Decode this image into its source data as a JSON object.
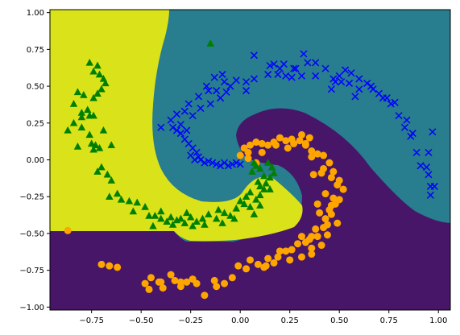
{
  "chart_data": {
    "type": "scatter",
    "title": "",
    "xlabel": "",
    "ylabel": "",
    "xlim": [
      -0.96,
      1.06
    ],
    "ylim": [
      -1.02,
      1.02
    ],
    "grid": false,
    "legend": "none",
    "x_ticks": [
      -0.75,
      -0.5,
      -0.25,
      0.0,
      0.25,
      0.5,
      0.75,
      1.0
    ],
    "x_tick_labels": [
      "−0.75",
      "−0.50",
      "−0.25",
      "0.00",
      "0.25",
      "0.50",
      "0.75",
      "1.00"
    ],
    "y_ticks": [
      -1.0,
      -0.75,
      -0.5,
      -0.25,
      0.0,
      0.25,
      0.5,
      0.75,
      1.0
    ],
    "y_tick_labels": [
      "−1.00",
      "−0.75",
      "−0.50",
      "−0.25",
      "0.00",
      "0.25",
      "0.50",
      "0.75",
      "1.00"
    ],
    "regions": [
      {
        "class": "teal",
        "color": "#287d8e"
      },
      {
        "class": "purple",
        "color": "#471669"
      },
      {
        "class": "yellow",
        "color": "#dae319"
      }
    ],
    "series": [
      {
        "marker": "x",
        "color": "#0000ff",
        "points": [
          [
            0.0,
            -0.03
          ],
          [
            -0.02,
            -0.02
          ],
          [
            -0.04,
            -0.03
          ],
          [
            -0.06,
            -0.04
          ],
          [
            -0.08,
            -0.02
          ],
          [
            -0.1,
            -0.04
          ],
          [
            -0.12,
            -0.03
          ],
          [
            -0.14,
            -0.02
          ],
          [
            -0.16,
            -0.01
          ],
          [
            -0.18,
            -0.02
          ],
          [
            -0.2,
            0.0
          ],
          [
            -0.21,
            0.02
          ],
          [
            -0.23,
            0.0
          ],
          [
            -0.25,
            0.03
          ],
          [
            -0.22,
            0.05
          ],
          [
            -0.24,
            0.08
          ],
          [
            -0.26,
            0.11
          ],
          [
            -0.28,
            0.14
          ],
          [
            -0.3,
            0.18
          ],
          [
            -0.32,
            0.2
          ],
          [
            -0.27,
            0.2
          ],
          [
            -0.3,
            0.24
          ],
          [
            -0.34,
            0.22
          ],
          [
            -0.4,
            0.22
          ],
          [
            -0.35,
            0.27
          ],
          [
            -0.32,
            0.31
          ],
          [
            -0.28,
            0.33
          ],
          [
            -0.24,
            0.3
          ],
          [
            -0.2,
            0.35
          ],
          [
            -0.15,
            0.38
          ],
          [
            -0.1,
            0.42
          ],
          [
            -0.07,
            0.46
          ],
          [
            -0.05,
            0.5
          ],
          [
            -0.02,
            0.54
          ],
          [
            -0.08,
            0.53
          ],
          [
            -0.12,
            0.47
          ],
          [
            0.07,
            0.55
          ],
          [
            0.07,
            0.71
          ],
          [
            0.15,
            0.64
          ],
          [
            0.19,
            0.58
          ],
          [
            0.2,
            0.62
          ],
          [
            0.22,
            0.65
          ],
          [
            0.26,
            0.56
          ],
          [
            0.28,
            0.62
          ],
          [
            0.32,
            0.72
          ],
          [
            0.34,
            0.66
          ],
          [
            0.38,
            0.57
          ],
          [
            0.43,
            0.62
          ],
          [
            0.47,
            0.55
          ],
          [
            0.5,
            0.57
          ],
          [
            0.53,
            0.61
          ],
          [
            0.56,
            0.59
          ],
          [
            0.6,
            0.55
          ],
          [
            0.64,
            0.52
          ],
          [
            0.67,
            0.48
          ],
          [
            0.7,
            0.45
          ],
          [
            0.74,
            0.42
          ],
          [
            0.76,
            0.38
          ],
          [
            0.8,
            0.3
          ],
          [
            0.83,
            0.22
          ],
          [
            0.86,
            0.16
          ],
          [
            0.89,
            0.05
          ],
          [
            0.91,
            -0.04
          ],
          [
            0.94,
            -0.05
          ],
          [
            0.95,
            -0.1
          ],
          [
            0.97,
            0.19
          ],
          [
            0.96,
            -0.18
          ],
          [
            0.96,
            -0.24
          ],
          [
            0.95,
            0.05
          ],
          [
            0.98,
            -0.18
          ],
          [
            0.72,
            0.42
          ],
          [
            0.58,
            0.43
          ],
          [
            0.55,
            0.52
          ],
          [
            0.51,
            0.53
          ],
          [
            0.48,
            0.53
          ],
          [
            0.46,
            0.48
          ],
          [
            0.31,
            0.57
          ],
          [
            0.27,
            0.62
          ],
          [
            0.17,
            0.65
          ],
          [
            0.14,
            0.58
          ],
          [
            0.23,
            0.57
          ],
          [
            0.03,
            0.53
          ],
          [
            0.03,
            0.47
          ],
          [
            0.38,
            0.66
          ],
          [
            0.6,
            0.48
          ],
          [
            0.66,
            0.5
          ],
          [
            0.78,
            0.39
          ],
          [
            0.84,
            0.27
          ],
          [
            0.87,
            0.18
          ],
          [
            -0.17,
            0.5
          ],
          [
            -0.09,
            0.58
          ],
          [
            -0.13,
            0.56
          ],
          [
            -0.26,
            0.38
          ],
          [
            -0.21,
            0.43
          ],
          [
            -0.16,
            0.47
          ]
        ]
      },
      {
        "marker": "o",
        "color": "#ffa500",
        "points": [
          [
            -0.87,
            -0.48
          ],
          [
            -0.7,
            -0.71
          ],
          [
            -0.66,
            -0.72
          ],
          [
            -0.62,
            -0.73
          ],
          [
            -0.48,
            -0.84
          ],
          [
            -0.46,
            -0.88
          ],
          [
            -0.45,
            -0.8
          ],
          [
            -0.4,
            -0.83
          ],
          [
            -0.39,
            -0.87
          ],
          [
            -0.35,
            -0.78
          ],
          [
            -0.33,
            -0.82
          ],
          [
            -0.3,
            -0.86
          ],
          [
            -0.27,
            -0.83
          ],
          [
            -0.24,
            -0.81
          ],
          [
            -0.22,
            -0.84
          ],
          [
            -0.18,
            -0.92
          ],
          [
            -0.12,
            -0.86
          ],
          [
            -0.08,
            -0.84
          ],
          [
            -0.04,
            -0.8
          ],
          [
            -0.01,
            -0.72
          ],
          [
            0.03,
            -0.74
          ],
          [
            0.05,
            -0.68
          ],
          [
            0.09,
            -0.71
          ],
          [
            0.13,
            -0.72
          ],
          [
            0.17,
            -0.7
          ],
          [
            0.19,
            -0.66
          ],
          [
            0.23,
            -0.62
          ],
          [
            0.26,
            -0.61
          ],
          [
            0.29,
            -0.57
          ],
          [
            0.31,
            -0.52
          ],
          [
            0.33,
            -0.56
          ],
          [
            0.35,
            -0.54
          ],
          [
            0.39,
            -0.52
          ],
          [
            0.38,
            -0.47
          ],
          [
            0.42,
            -0.46
          ],
          [
            0.43,
            -0.4
          ],
          [
            0.45,
            -0.34
          ],
          [
            0.46,
            -0.31
          ],
          [
            0.5,
            -0.27
          ],
          [
            0.52,
            -0.2
          ],
          [
            0.5,
            -0.14
          ],
          [
            0.47,
            -0.08
          ],
          [
            0.45,
            -0.02
          ],
          [
            0.42,
            0.03
          ],
          [
            0.39,
            0.04
          ],
          [
            0.36,
            0.06
          ],
          [
            0.33,
            0.1
          ],
          [
            0.3,
            0.13
          ],
          [
            0.26,
            0.14
          ],
          [
            0.23,
            0.13
          ],
          [
            0.2,
            0.15
          ],
          [
            0.17,
            0.12
          ],
          [
            0.14,
            0.1
          ],
          [
            0.11,
            0.11
          ],
          [
            0.08,
            0.12
          ],
          [
            0.05,
            0.1
          ],
          [
            0.02,
            0.08
          ],
          [
            0.0,
            0.03
          ],
          [
            0.04,
            0.01
          ],
          [
            0.08,
            -0.02
          ],
          [
            0.31,
            0.17
          ],
          [
            0.33,
            0.11
          ],
          [
            0.36,
            0.02
          ],
          [
            0.41,
            -0.09
          ],
          [
            0.46,
            -0.12
          ],
          [
            0.49,
            -0.17
          ],
          [
            0.48,
            -0.3
          ],
          [
            0.46,
            -0.37
          ],
          [
            0.49,
            -0.43
          ],
          [
            0.44,
            -0.51
          ],
          [
            0.41,
            -0.58
          ],
          [
            0.36,
            -0.6
          ],
          [
            0.36,
            -0.64
          ],
          [
            0.31,
            -0.66
          ],
          [
            0.25,
            -0.68
          ],
          [
            0.43,
            -0.23
          ],
          [
            0.47,
            -0.26
          ],
          [
            0.42,
            -0.06
          ],
          [
            0.37,
            -0.1
          ],
          [
            0.24,
            0.08
          ],
          [
            0.27,
            0.11
          ],
          [
            0.35,
            0.15
          ],
          [
            0.18,
            0.1
          ],
          [
            0.11,
            0.05
          ],
          [
            0.04,
            0.05
          ],
          [
            -0.41,
            -0.83
          ],
          [
            -0.13,
            -0.82
          ],
          [
            0.12,
            -0.73
          ],
          [
            0.2,
            -0.62
          ],
          [
            0.4,
            -0.36
          ],
          [
            0.39,
            -0.3
          ],
          [
            0.44,
            -0.44
          ],
          [
            0.36,
            -0.52
          ],
          [
            -0.3,
            -0.83
          ],
          [
            0.14,
            -0.67
          ]
        ]
      },
      {
        "marker": "^",
        "color": "#008000",
        "points": [
          [
            -0.76,
            0.66
          ],
          [
            -0.74,
            0.6
          ],
          [
            -0.71,
            0.58
          ],
          [
            -0.69,
            0.55
          ],
          [
            -0.7,
            0.48
          ],
          [
            -0.72,
            0.45
          ],
          [
            -0.74,
            0.42
          ],
          [
            -0.79,
            0.44
          ],
          [
            -0.82,
            0.46
          ],
          [
            -0.84,
            0.38
          ],
          [
            -0.8,
            0.32
          ],
          [
            -0.77,
            0.34
          ],
          [
            -0.74,
            0.3
          ],
          [
            -0.84,
            0.25
          ],
          [
            -0.8,
            0.22
          ],
          [
            -0.76,
            0.17
          ],
          [
            -0.75,
            0.11
          ],
          [
            -0.73,
            0.1
          ],
          [
            -0.74,
            0.07
          ],
          [
            -0.71,
            0.08
          ],
          [
            -0.72,
            -0.08
          ],
          [
            -0.67,
            -0.1
          ],
          [
            -0.65,
            -0.14
          ],
          [
            -0.66,
            -0.25
          ],
          [
            -0.6,
            -0.27
          ],
          [
            -0.56,
            -0.28
          ],
          [
            -0.52,
            -0.29
          ],
          [
            -0.48,
            -0.32
          ],
          [
            -0.46,
            -0.38
          ],
          [
            -0.43,
            -0.38
          ],
          [
            -0.4,
            -0.4
          ],
          [
            -0.37,
            -0.42
          ],
          [
            -0.34,
            -0.44
          ],
          [
            -0.32,
            -0.41
          ],
          [
            -0.3,
            -0.4
          ],
          [
            -0.28,
            -0.43
          ],
          [
            -0.25,
            -0.39
          ],
          [
            -0.22,
            -0.42
          ],
          [
            -0.19,
            -0.4
          ],
          [
            -0.16,
            -0.37
          ],
          [
            -0.12,
            -0.4
          ],
          [
            -0.08,
            -0.36
          ],
          [
            -0.05,
            -0.38
          ],
          [
            -0.02,
            -0.33
          ],
          [
            0.0,
            -0.28
          ],
          [
            0.03,
            -0.25
          ],
          [
            0.05,
            -0.32
          ],
          [
            0.08,
            -0.27
          ],
          [
            0.1,
            -0.24
          ],
          [
            0.12,
            -0.2
          ],
          [
            0.09,
            -0.15
          ],
          [
            0.12,
            -0.11
          ],
          [
            0.1,
            -0.06
          ],
          [
            0.08,
            -0.04
          ],
          [
            0.06,
            -0.08
          ],
          [
            0.15,
            -0.12
          ],
          [
            0.17,
            -0.09
          ],
          [
            0.16,
            -0.05
          ],
          [
            0.14,
            -0.02
          ],
          [
            0.1,
            -0.18
          ],
          [
            -0.8,
            0.29
          ],
          [
            -0.72,
            0.64
          ],
          [
            -0.76,
            0.3
          ],
          [
            -0.69,
            0.2
          ],
          [
            -0.7,
            -0.05
          ],
          [
            -0.54,
            -0.35
          ],
          [
            -0.4,
            -0.35
          ],
          [
            -0.35,
            -0.39
          ],
          [
            -0.24,
            -0.45
          ],
          [
            -0.18,
            -0.44
          ],
          [
            -0.09,
            -0.43
          ],
          [
            -0.03,
            -0.4
          ],
          [
            0.02,
            -0.3
          ],
          [
            0.05,
            -0.22
          ],
          [
            0.1,
            -0.31
          ],
          [
            -0.15,
            0.79
          ],
          [
            -0.87,
            0.2
          ],
          [
            -0.82,
            0.09
          ],
          [
            -0.65,
            0.1
          ],
          [
            -0.62,
            -0.23
          ],
          [
            -0.44,
            -0.45
          ],
          [
            -0.27,
            -0.36
          ],
          [
            -0.11,
            -0.34
          ],
          [
            0.07,
            -0.37
          ],
          [
            0.13,
            -0.16
          ],
          [
            0.07,
            -0.02
          ],
          [
            0.15,
            -0.2
          ],
          [
            -0.68,
            0.52
          ]
        ]
      }
    ]
  }
}
